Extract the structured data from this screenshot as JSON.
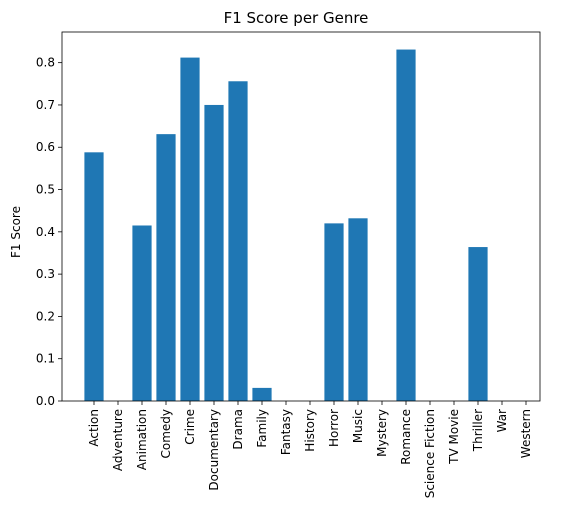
{
  "chart_data": {
    "type": "bar",
    "title": "F1 Score per Genre",
    "xlabel": "",
    "ylabel": "F1 Score",
    "categories": [
      "Action",
      "Adventure",
      "Animation",
      "Comedy",
      "Crime",
      "Documentary",
      "Drama",
      "Family",
      "Fantasy",
      "History",
      "Horror",
      "Music",
      "Mystery",
      "Romance",
      "Science Fiction",
      "TV Movie",
      "Thriller",
      "War",
      "Western"
    ],
    "values": [
      0.588,
      0.0,
      0.415,
      0.631,
      0.812,
      0.7,
      0.756,
      0.031,
      0.0,
      0.0,
      0.42,
      0.432,
      0.0,
      0.831,
      0.0,
      0.0,
      0.364,
      0.0,
      0.0
    ],
    "ylim": [
      0,
      0.8725
    ],
    "yticks": [
      0.0,
      0.1,
      0.2,
      0.3,
      0.4,
      0.5,
      0.6,
      0.7,
      0.8
    ],
    "ytick_labels": [
      "0.0",
      "0.1",
      "0.2",
      "0.3",
      "0.4",
      "0.5",
      "0.6",
      "0.7",
      "0.8"
    ],
    "bar_color": "#1f77b4",
    "grid": false,
    "legend": "none"
  }
}
